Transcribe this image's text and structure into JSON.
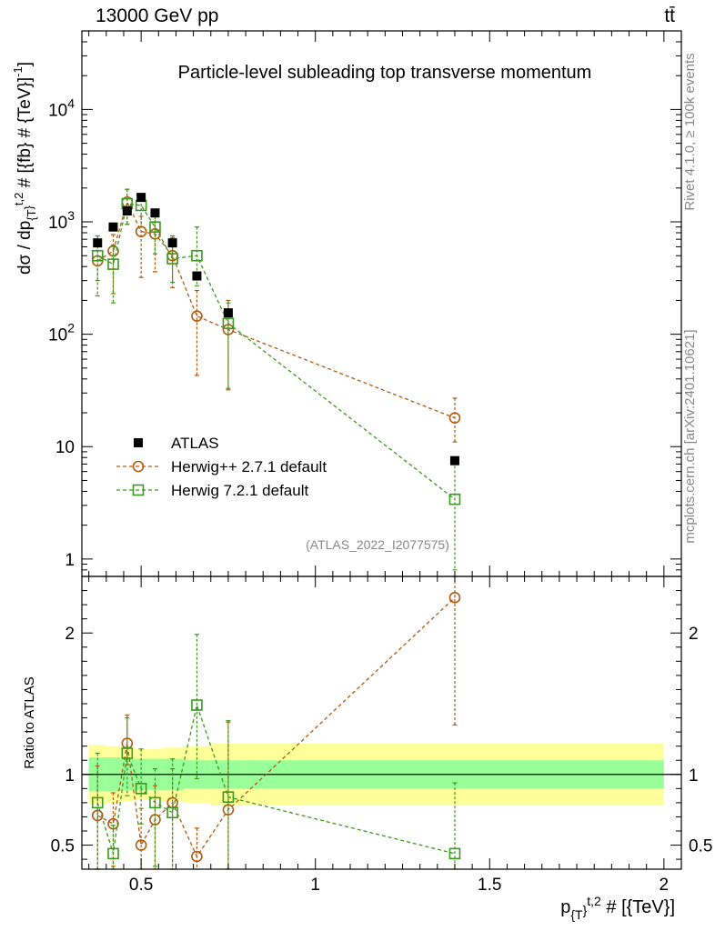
{
  "chart_data": {
    "type": "scatter",
    "header": {
      "left": "13000 GeV pp",
      "right": "tt̄"
    },
    "title": "Particle-level subleading top transverse momentum",
    "watermark": "(ATLAS_2022_I2077575)",
    "side_labels": {
      "rivet": "Rivet 4.1.0, ≥ 100k events",
      "mcplots": "mcplots.cern.ch [arXiv:2401.10621]"
    },
    "colors": {
      "data": "#000000",
      "herwigpp": "#b25a10",
      "herwig7": "#3a9a1e",
      "band_inner": "#99ff99",
      "band_outer": "#ffff99"
    },
    "upper": {
      "ylabel": "dσ / dp_{T}^{t,2} # [{fb} # {TeV}]^{-1}",
      "yscale": "log",
      "ylim": [
        0.7,
        50000
      ],
      "yticks": [
        "1",
        "10",
        "10^2",
        "10^3",
        "10^4"
      ]
    },
    "lower": {
      "ylabel": "Ratio to ATLAS",
      "ylim": [
        0.33,
        2.4
      ],
      "yticks": [
        "0.5",
        "1",
        "2"
      ]
    },
    "x": {
      "label": "p_{T}^{t,2} # [{TeV}]",
      "lim": [
        0.33,
        2.05
      ],
      "ticks": [
        "0.5",
        "1",
        "1.5",
        "2"
      ]
    },
    "bins": [
      {
        "lo": 0.35,
        "hi": 0.4
      },
      {
        "lo": 0.4,
        "hi": 0.44
      },
      {
        "lo": 0.44,
        "hi": 0.48
      },
      {
        "lo": 0.48,
        "hi": 0.52
      },
      {
        "lo": 0.52,
        "hi": 0.56
      },
      {
        "lo": 0.56,
        "hi": 0.62
      },
      {
        "lo": 0.62,
        "hi": 0.7
      },
      {
        "lo": 0.7,
        "hi": 0.8
      },
      {
        "lo": 0.8,
        "hi": 2.0
      }
    ],
    "band": {
      "inner": [
        0.12,
        0.12,
        0.11,
        0.11,
        0.11,
        0.11,
        0.1,
        0.1,
        0.1
      ],
      "outer": [
        0.21,
        0.2,
        0.19,
        0.18,
        0.18,
        0.19,
        0.2,
        0.22,
        0.22
      ]
    },
    "series": [
      {
        "name": "ATLAS",
        "marker": "filled-square",
        "color": "#000000",
        "x": [
          0.375,
          0.42,
          0.46,
          0.5,
          0.54,
          0.59,
          0.66,
          0.75,
          1.4
        ],
        "y": [
          650,
          900,
          1250,
          1650,
          1200,
          650,
          330,
          155,
          7.5
        ]
      },
      {
        "name": "Herwig++ 2.7.1 default",
        "marker": "open-circle",
        "color": "#b25a10",
        "x": [
          0.375,
          0.42,
          0.46,
          0.5,
          0.54,
          0.59,
          0.66,
          0.75,
          1.4
        ],
        "y": [
          450,
          550,
          1500,
          820,
          780,
          500,
          145,
          110,
          18
        ],
        "err_up": [
          220,
          220,
          450,
          300,
          330,
          250,
          100,
          90,
          9
        ],
        "err_down": [
          230,
          320,
          550,
          500,
          420,
          240,
          102,
          78,
          7
        ],
        "ratio": [
          0.71,
          0.65,
          1.22,
          0.5,
          0.68,
          0.8,
          0.42,
          0.75,
          2.25
        ],
        "ratio_up": [
          0.35,
          0.22,
          0.2,
          0.26,
          0.24,
          0.24,
          0.2,
          0.62,
          0.9
        ],
        "ratio_down": [
          0.4,
          0.3,
          0.15,
          0.25,
          0.35,
          0.5,
          0.4,
          0.6,
          0.9
        ]
      },
      {
        "name": "Herwig 7.2.1 default",
        "marker": "open-square",
        "color": "#3a9a1e",
        "x": [
          0.375,
          0.42,
          0.46,
          0.5,
          0.54,
          0.59,
          0.66,
          0.75,
          1.4
        ],
        "y": [
          500,
          420,
          1450,
          1400,
          900,
          470,
          500,
          125,
          3.4
        ],
        "err_up": [
          250,
          200,
          500,
          350,
          350,
          250,
          400,
          65,
          4
        ],
        "err_down": [
          200,
          230,
          500,
          500,
          380,
          180,
          230,
          92,
          2.6
        ],
        "ratio": [
          0.8,
          0.44,
          1.15,
          0.9,
          0.8,
          0.73,
          1.49,
          0.84,
          0.44
        ],
        "ratio_up": [
          0.35,
          0.2,
          0.25,
          0.28,
          0.24,
          0.38,
          0.5,
          0.54,
          0.5
        ],
        "ratio_down": [
          0.47,
          0.12,
          0.3,
          0.25,
          0.45,
          0.4,
          0.52,
          0.51,
          0.14
        ]
      }
    ]
  }
}
